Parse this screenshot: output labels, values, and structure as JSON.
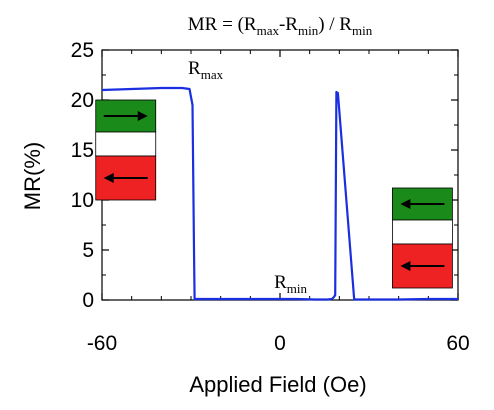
{
  "chart_data": {
    "type": "line",
    "title": {
      "prefix": "MR = (R",
      "sub1": "max",
      "mid": "-R",
      "sub2": "min",
      "mid2": ") / R",
      "sub3": "min"
    },
    "xlabel": "Applied Field (Oe)",
    "ylabel": "MR(%)",
    "xlim": [
      -60,
      60
    ],
    "ylim": [
      0,
      25
    ],
    "xticks": [
      -60,
      0,
      60
    ],
    "yticks": [
      0,
      5,
      10,
      15,
      20,
      25
    ],
    "grid": false,
    "series": [
      {
        "color": "#1a2fe0",
        "x": [
          -60,
          -50,
          -40,
          -33,
          -30.5,
          -29.5,
          -29,
          -28.8,
          -20,
          -5,
          5,
          12,
          16,
          17.5,
          18.2,
          18.6,
          19,
          19.5,
          25,
          40,
          50,
          60
        ],
        "y": [
          21.0,
          21.1,
          21.2,
          21.2,
          21.1,
          19.5,
          5,
          0.1,
          0.1,
          0.1,
          0.1,
          0.05,
          0.05,
          0.1,
          0.3,
          0.5,
          20.8,
          20.7,
          0.05,
          0.05,
          0.1,
          0.1
        ]
      }
    ],
    "annotations": [
      {
        "id": "rmax",
        "main": "R",
        "sub": "max",
        "x": -31,
        "y": 22.6
      },
      {
        "id": "rmin",
        "main": "R",
        "sub": "min",
        "x": -2,
        "y": 1.2
      }
    ],
    "insets": [
      {
        "id": "left-inset",
        "top_color": "#1a8a1a",
        "bottom_color": "#ee2222",
        "top_arrow": "right",
        "bottom_arrow": "left",
        "center_x": -52,
        "center_y": 15
      },
      {
        "id": "right-inset",
        "top_color": "#1a8a1a",
        "bottom_color": "#ee2222",
        "top_arrow": "left",
        "bottom_arrow": "left",
        "center_x": 48,
        "center_y": 6.2
      }
    ]
  }
}
